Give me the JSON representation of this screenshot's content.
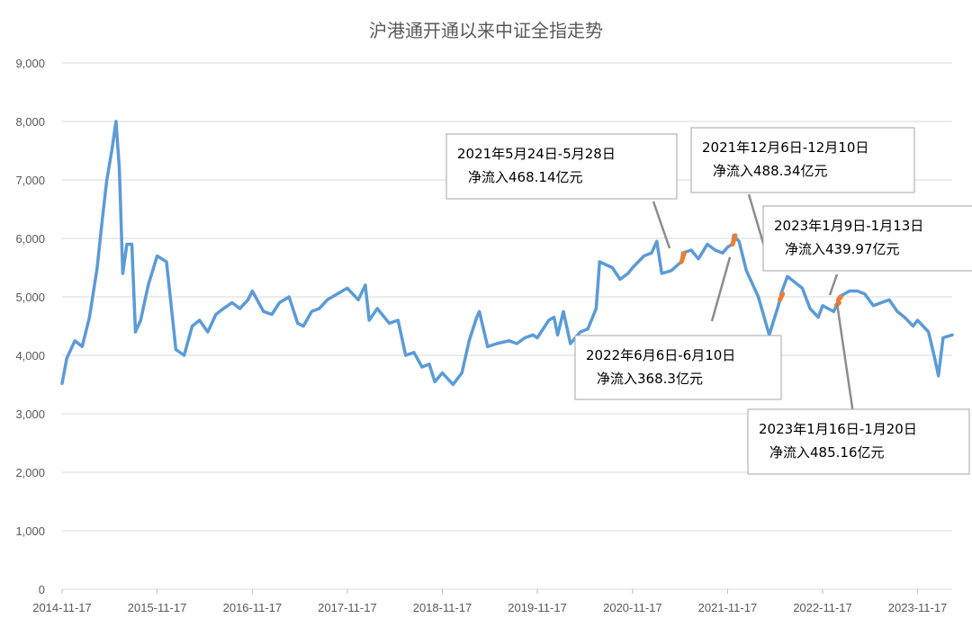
{
  "chart_data": {
    "type": "line",
    "title": "沪港通开通以来中证全指走势",
    "xlabel": "",
    "ylabel": "",
    "ylim": [
      0,
      9000
    ],
    "yticks": [
      "0",
      "1,000",
      "2,000",
      "3,000",
      "4,000",
      "5,000",
      "6,000",
      "7,000",
      "8,000",
      "9,000"
    ],
    "ytick_values": [
      0,
      1000,
      2000,
      3000,
      4000,
      5000,
      6000,
      7000,
      8000,
      9000
    ],
    "xlim": [
      "2014-11-17",
      "2024-03-29"
    ],
    "xticks": [
      "2014-11-17",
      "2015-11-17",
      "2016-11-17",
      "2017-11-17",
      "2018-11-17",
      "2019-11-17",
      "2020-11-17",
      "2021-11-17",
      "2022-11-17",
      "2023-11-17"
    ],
    "grid": "horizontal",
    "legend": "none",
    "line_color": "#5b9bd5",
    "highlight_color": "#ed7d31",
    "series": [
      {
        "values": [
          [
            "2014-11-17",
            3520
          ],
          [
            "2014-12-05",
            3950
          ],
          [
            "2015-01-05",
            4250
          ],
          [
            "2015-02-02",
            4150
          ],
          [
            "2015-03-02",
            4650
          ],
          [
            "2015-04-01",
            5500
          ],
          [
            "2015-04-20",
            6300
          ],
          [
            "2015-05-08",
            7000
          ],
          [
            "2015-05-27",
            7500
          ],
          [
            "2015-06-12",
            8000
          ],
          [
            "2015-06-25",
            7200
          ],
          [
            "2015-07-08",
            5400
          ],
          [
            "2015-07-24",
            5900
          ],
          [
            "2015-08-12",
            5900
          ],
          [
            "2015-08-26",
            4400
          ],
          [
            "2015-09-15",
            4600
          ],
          [
            "2015-10-14",
            5200
          ],
          [
            "2015-11-17",
            5700
          ],
          [
            "2015-12-23",
            5600
          ],
          [
            "2016-01-28",
            4100
          ],
          [
            "2016-02-29",
            4000
          ],
          [
            "2016-03-31",
            4500
          ],
          [
            "2016-04-28",
            4600
          ],
          [
            "2016-05-30",
            4400
          ],
          [
            "2016-06-30",
            4700
          ],
          [
            "2016-07-29",
            4800
          ],
          [
            "2016-08-31",
            4900
          ],
          [
            "2016-09-30",
            4800
          ],
          [
            "2016-10-31",
            4950
          ],
          [
            "2016-11-17",
            5100
          ],
          [
            "2016-12-30",
            4750
          ],
          [
            "2017-01-31",
            4700
          ],
          [
            "2017-03-01",
            4900
          ],
          [
            "2017-04-07",
            5000
          ],
          [
            "2017-05-10",
            4550
          ],
          [
            "2017-06-01",
            4500
          ],
          [
            "2017-07-03",
            4750
          ],
          [
            "2017-08-01",
            4800
          ],
          [
            "2017-09-01",
            4950
          ],
          [
            "2017-10-09",
            5050
          ],
          [
            "2017-11-17",
            5150
          ],
          [
            "2017-12-29",
            4950
          ],
          [
            "2018-01-25",
            5200
          ],
          [
            "2018-02-09",
            4600
          ],
          [
            "2018-03-12",
            4800
          ],
          [
            "2018-04-27",
            4550
          ],
          [
            "2018-05-31",
            4600
          ],
          [
            "2018-06-29",
            4000
          ],
          [
            "2018-07-31",
            4050
          ],
          [
            "2018-08-31",
            3800
          ],
          [
            "2018-09-28",
            3850
          ],
          [
            "2018-10-19",
            3550
          ],
          [
            "2018-11-17",
            3700
          ],
          [
            "2018-12-28",
            3500
          ],
          [
            "2019-01-31",
            3700
          ],
          [
            "2019-02-28",
            4250
          ],
          [
            "2019-03-29",
            4650
          ],
          [
            "2019-04-08",
            4750
          ],
          [
            "2019-05-10",
            4150
          ],
          [
            "2019-06-14",
            4200
          ],
          [
            "2019-07-31",
            4250
          ],
          [
            "2019-08-30",
            4200
          ],
          [
            "2019-09-30",
            4300
          ],
          [
            "2019-10-31",
            4350
          ],
          [
            "2019-11-17",
            4300
          ],
          [
            "2019-12-31",
            4600
          ],
          [
            "2020-01-20",
            4650
          ],
          [
            "2020-02-03",
            4350
          ],
          [
            "2020-02-25",
            4750
          ],
          [
            "2020-03-23",
            4200
          ],
          [
            "2020-04-30",
            4400
          ],
          [
            "2020-05-29",
            4450
          ],
          [
            "2020-06-30",
            4800
          ],
          [
            "2020-07-13",
            5600
          ],
          [
            "2020-08-31",
            5500
          ],
          [
            "2020-09-30",
            5300
          ],
          [
            "2020-10-30",
            5400
          ],
          [
            "2020-11-17",
            5500
          ],
          [
            "2020-12-31",
            5700
          ],
          [
            "2021-01-29",
            5750
          ],
          [
            "2021-02-18",
            5950
          ],
          [
            "2021-03-09",
            5400
          ],
          [
            "2021-04-15",
            5450
          ],
          [
            "2021-05-10",
            5550
          ],
          [
            "2021-05-24",
            5600
          ],
          [
            "2021-05-28",
            5750
          ],
          [
            "2021-06-30",
            5800
          ],
          [
            "2021-07-28",
            5650
          ],
          [
            "2021-08-31",
            5900
          ],
          [
            "2021-09-30",
            5800
          ],
          [
            "2021-10-29",
            5750
          ],
          [
            "2021-11-17",
            5850
          ],
          [
            "2021-12-06",
            5900
          ],
          [
            "2021-12-10",
            6050
          ],
          [
            "2021-12-31",
            5950
          ],
          [
            "2022-01-28",
            5450
          ],
          [
            "2022-03-15",
            5000
          ],
          [
            "2022-04-26",
            4350
          ],
          [
            "2022-05-31",
            4850
          ],
          [
            "2022-06-06",
            4950
          ],
          [
            "2022-06-10",
            5050
          ],
          [
            "2022-07-05",
            5350
          ],
          [
            "2022-08-31",
            5150
          ],
          [
            "2022-09-30",
            4800
          ],
          [
            "2022-10-31",
            4650
          ],
          [
            "2022-11-17",
            4850
          ],
          [
            "2022-12-30",
            4750
          ],
          [
            "2023-01-09",
            4850
          ],
          [
            "2023-01-13",
            4900
          ],
          [
            "2023-01-16",
            4950
          ],
          [
            "2023-01-20",
            5000
          ],
          [
            "2023-02-28",
            5100
          ],
          [
            "2023-03-31",
            5100
          ],
          [
            "2023-04-28",
            5050
          ],
          [
            "2023-05-31",
            4850
          ],
          [
            "2023-06-30",
            4900
          ],
          [
            "2023-07-31",
            4950
          ],
          [
            "2023-08-31",
            4750
          ],
          [
            "2023-09-28",
            4650
          ],
          [
            "2023-10-31",
            4500
          ],
          [
            "2023-11-17",
            4600
          ],
          [
            "2023-12-29",
            4400
          ],
          [
            "2024-01-22",
            3950
          ],
          [
            "2024-02-05",
            3650
          ],
          [
            "2024-02-23",
            4300
          ],
          [
            "2024-03-29",
            4350
          ]
        ]
      }
    ],
    "highlights": [
      {
        "start": "2021-05-24",
        "end": "2021-05-28"
      },
      {
        "start": "2021-12-06",
        "end": "2021-12-10"
      },
      {
        "start": "2022-06-06",
        "end": "2022-06-10"
      },
      {
        "start": "2023-01-09",
        "end": "2023-01-13"
      },
      {
        "start": "2023-01-16",
        "end": "2023-01-20"
      }
    ],
    "annotations": [
      {
        "line1": "2021年5月24日-5月28日",
        "line2": "净流入468.14亿元"
      },
      {
        "line1": "2021年12月6日-12月10日",
        "line2": "净流入488.34亿元"
      },
      {
        "line1": "2023年1月9日-1月13日",
        "line2": "净流入439.97亿元"
      },
      {
        "line1": "2022年6月6日-6月10日",
        "line2": "净流入368.3亿元"
      },
      {
        "line1": "2023年1月16日-1月20日",
        "line2": "净流入485.16亿元"
      }
    ]
  }
}
